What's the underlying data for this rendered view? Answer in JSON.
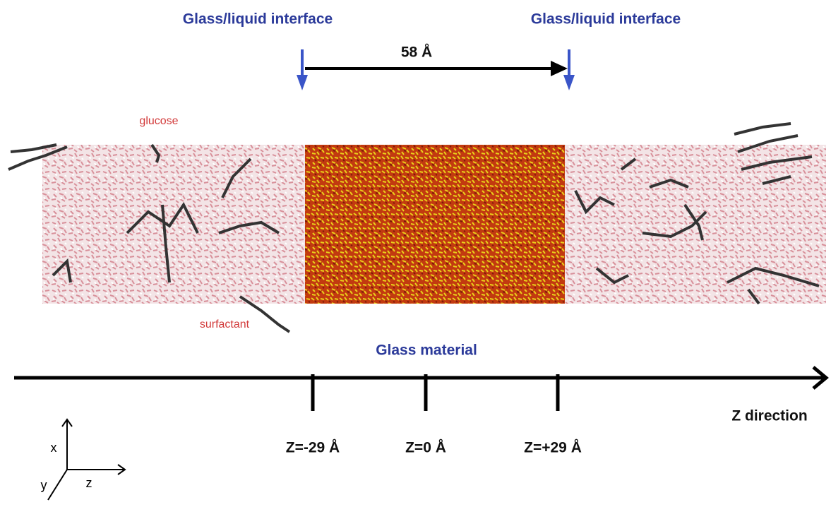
{
  "interfaces": [
    "Glass/liquid interface",
    "Glass/liquid interface"
  ],
  "span_label": "58 Å",
  "annotations": {
    "glucose": "glucose",
    "surfactant": "surfactant"
  },
  "region_label": "Glass material",
  "z_axis": {
    "label": "Z direction",
    "ticks": [
      "Z=-29 Å",
      "Z=0 Å",
      "Z=+29 Å"
    ]
  },
  "coordinate_axes": {
    "x": "x",
    "y": "y",
    "z": "z"
  }
}
